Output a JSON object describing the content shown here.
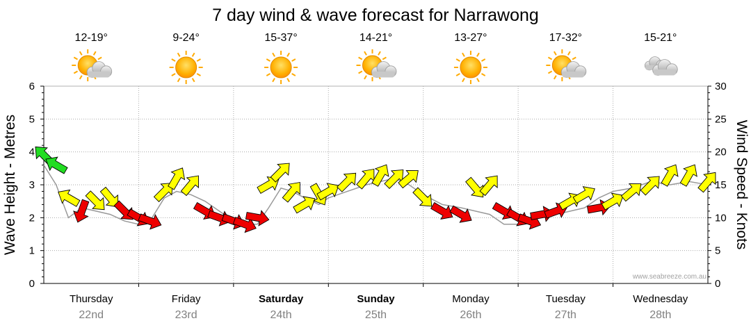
{
  "title": "7 day wind & wave forecast for Narrawong",
  "y_left_label": "Wave Height - Metres",
  "y_right_label": "Wind Speed - Knots",
  "watermark": "www.seabreeze.com.au",
  "colors": {
    "green": "#22dd22",
    "yellow": "#ffff00",
    "red": "#ee0000",
    "wave_line": "#999999",
    "grid": "#aaaaaa",
    "sun": "#ffaa00",
    "cloud": "#c8c8c8"
  },
  "days": [
    {
      "name": "Thursday",
      "date": "22nd",
      "temp": "12-19°",
      "icon": "sun-cloud-icon",
      "bold": false
    },
    {
      "name": "Friday",
      "date": "23rd",
      "temp": "9-24°",
      "icon": "sun-icon",
      "bold": false
    },
    {
      "name": "Saturday",
      "date": "24th",
      "temp": "15-37°",
      "icon": "sun-icon",
      "bold": true
    },
    {
      "name": "Sunday",
      "date": "25th",
      "temp": "14-21°",
      "icon": "sun-cloud-icon",
      "bold": true
    },
    {
      "name": "Monday",
      "date": "26th",
      "temp": "13-27°",
      "icon": "sun-icon",
      "bold": false
    },
    {
      "name": "Tuesday",
      "date": "27th",
      "temp": "17-32°",
      "icon": "sun-cloud-icon",
      "bold": false
    },
    {
      "name": "Wednesday",
      "date": "28th",
      "temp": "15-21°",
      "icon": "cloud-icon",
      "bold": false
    }
  ],
  "chart_data": {
    "type": "line",
    "x_unit": "days",
    "ylim_left": [
      0,
      6
    ],
    "ylim_right": [
      0,
      30
    ],
    "yticks_left": [
      0,
      1,
      2,
      3,
      4,
      5,
      6
    ],
    "yticks_right": [
      0,
      5,
      10,
      15,
      20,
      25,
      30
    ],
    "grid": true,
    "series": [
      {
        "name": "Wave Height",
        "axis": "left",
        "x": [
          0,
          0.13,
          0.26,
          0.4,
          0.55,
          0.7,
          0.85,
          1.0,
          1.12,
          1.27,
          1.4,
          1.55,
          1.7,
          1.85,
          2.0,
          2.12,
          2.25,
          2.37,
          2.5,
          2.62,
          2.75,
          2.9,
          3.0,
          3.2,
          3.4,
          3.55,
          3.7,
          3.85,
          4.0,
          4.2,
          4.4,
          4.55,
          4.7,
          4.85,
          5.0,
          5.12,
          5.25,
          5.4,
          5.55,
          5.7,
          5.85,
          6.0,
          6.2,
          6.4,
          6.6,
          6.8,
          7.0
        ],
        "y": [
          3.6,
          3.0,
          2.0,
          2.3,
          2.2,
          2.1,
          1.9,
          1.8,
          1.9,
          2.6,
          2.8,
          2.7,
          2.5,
          2.2,
          1.9,
          1.8,
          1.8,
          2.3,
          2.9,
          2.8,
          2.6,
          2.4,
          2.6,
          2.8,
          3.0,
          3.1,
          3.2,
          3.0,
          2.7,
          2.4,
          2.3,
          2.2,
          2.1,
          1.8,
          1.8,
          2.0,
          2.2,
          2.1,
          2.2,
          2.3,
          2.6,
          2.8,
          2.9,
          3.1,
          3.0,
          3.1,
          3.0
        ]
      },
      {
        "name": "Wind Speed",
        "axis": "right",
        "x": [
          0,
          0.13,
          0.26,
          0.4,
          0.55,
          0.7,
          0.85,
          1.0,
          1.12,
          1.27,
          1.4,
          1.55,
          1.7,
          1.85,
          2.0,
          2.12,
          2.25,
          2.37,
          2.5,
          2.62,
          2.75,
          2.9,
          3.0,
          3.2,
          3.4,
          3.55,
          3.7,
          3.85,
          4.0,
          4.2,
          4.4,
          4.55,
          4.7,
          4.85,
          5.0,
          5.12,
          5.25,
          5.4,
          5.55,
          5.7,
          5.85,
          6.0,
          6.2,
          6.4,
          6.6,
          6.8,
          7.0
        ],
        "y": [
          19.5,
          18,
          13,
          11,
          12.5,
          13,
          11,
          10,
          9.5,
          14,
          16,
          15,
          11,
          10,
          9.5,
          9,
          10,
          15,
          17,
          14,
          12,
          13.5,
          14,
          15.5,
          16,
          16.5,
          16,
          16,
          13,
          11,
          10.5,
          14.5,
          15,
          11,
          10,
          9.5,
          10.5,
          11,
          12.5,
          13.5,
          11.5,
          12.5,
          14,
          15,
          16.5,
          16.5,
          15.5
        ],
        "direction_deg": [
          315,
          300,
          300,
          200,
          135,
          140,
          135,
          120,
          110,
          45,
          30,
          40,
          120,
          110,
          110,
          110,
          100,
          60,
          45,
          40,
          60,
          150,
          60,
          45,
          40,
          30,
          45,
          50,
          135,
          120,
          120,
          140,
          40,
          120,
          120,
          110,
          80,
          70,
          60,
          60,
          80,
          60,
          50,
          45,
          30,
          30,
          40
        ],
        "color_thresholds_knots": {
          "green": ">= 18",
          "yellow": "12 - 18",
          "red": "< 12"
        }
      }
    ]
  }
}
